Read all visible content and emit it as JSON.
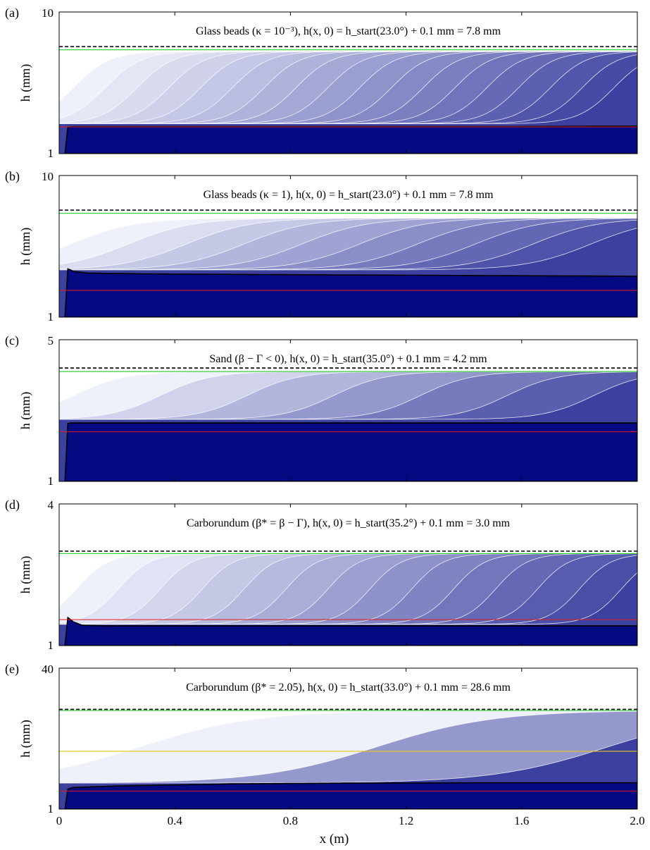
{
  "chart_data": {
    "type": "area",
    "xlabel": "x (m)",
    "xlim": [
      0,
      2.0
    ],
    "xticks": [
      "0",
      "0.4",
      "0.8",
      "1.2",
      "1.6",
      "2.0"
    ],
    "xtick_values": [
      0,
      0.4,
      0.8,
      1.2,
      1.6,
      2.0
    ],
    "panels": [
      {
        "label": "(a)",
        "title": "Glass beads (κ = 10⁻³), h(x, 0) = h_start(23.0°) + 0.1 mm = 7.8 mm",
        "ylabel": "h (mm)",
        "ylim": [
          1,
          10
        ],
        "ytick_labels": [
          "1",
          "10"
        ],
        "initial_h": 7.8,
        "green_line": 7.6,
        "red_line": 2.7,
        "deposit": {
          "x": [
            0.02,
            0.03,
            0.06,
            0.2,
            0.6,
            1.0,
            1.5,
            2.0
          ],
          "h": [
            1.0,
            2.7,
            2.72,
            2.72,
            2.72,
            2.72,
            2.72,
            2.75
          ]
        },
        "profiles": {
          "count": 18,
          "front_start": 0.05,
          "front_step": 0.11,
          "left_h": 2.9,
          "right_h": 7.5,
          "blend_width": 0.25
        }
      },
      {
        "label": "(b)",
        "title": "Glass beads (κ = 1), h(x, 0) = h_start(23.0°) + 0.1 mm = 7.8 mm",
        "ylabel": "h (mm)",
        "ylim": [
          1,
          10
        ],
        "ytick_labels": [
          "1",
          "10"
        ],
        "initial_h": 7.8,
        "green_line": 7.6,
        "red_line": 2.7,
        "deposit": {
          "x": [
            0.02,
            0.03,
            0.05,
            0.1,
            0.3,
            0.8,
            1.4,
            2.0
          ],
          "h": [
            1.0,
            4.1,
            3.9,
            3.8,
            3.75,
            3.7,
            3.65,
            3.6
          ]
        },
        "profiles": {
          "count": 10,
          "front_start": 0.04,
          "front_step": 0.2,
          "left_h": 4.0,
          "right_h": 7.3,
          "blend_width": 0.45
        }
      },
      {
        "label": "(c)",
        "title": "Sand (β − Γ < 0), h(x, 0) = h_start(35.0°) + 0.1 mm = 4.2 mm",
        "ylabel": "h (mm)",
        "ylim": [
          1,
          5
        ],
        "ytick_labels": [
          "1",
          "5"
        ],
        "initial_h": 4.2,
        "green_line": 4.1,
        "red_line": 2.4,
        "deposit": {
          "x": [
            0.02,
            0.03,
            0.1,
            0.6,
            1.2,
            2.0
          ],
          "h": [
            1.0,
            2.65,
            2.65,
            2.65,
            2.65,
            2.65
          ]
        },
        "profiles": {
          "count": 7,
          "front_start": 0.05,
          "front_step": 0.3,
          "left_h": 2.75,
          "right_h": 4.1,
          "blend_width": 0.35
        }
      },
      {
        "label": "(d)",
        "title": "Carborundum (β* = β − Γ), h(x, 0) = h_start(35.2°) + 0.1 mm = 3.0 mm",
        "ylabel": "h (mm)",
        "ylim": [
          1,
          4
        ],
        "ytick_labels": [
          "1",
          "4"
        ],
        "initial_h": 3.0,
        "green_line": 2.95,
        "red_line": 1.55,
        "deposit": {
          "x": [
            0.02,
            0.03,
            0.05,
            0.08,
            0.15,
            0.5,
            1.2,
            2.0
          ],
          "h": [
            1.0,
            1.6,
            1.5,
            1.43,
            1.42,
            1.42,
            1.42,
            1.42
          ]
        },
        "profiles": {
          "count": 14,
          "front_start": 0.06,
          "front_step": 0.145,
          "left_h": 1.45,
          "right_h": 2.95,
          "blend_width": 0.22
        }
      },
      {
        "label": "(e)",
        "title": "Carborundum (β* = 2.05), h(x, 0) = h_start(33.0°) + 0.1 mm = 28.6 mm",
        "ylabel": "h (mm)",
        "ylim": [
          1,
          40
        ],
        "ytick_labels": [
          "1",
          "40"
        ],
        "initial_h": 28.6,
        "green_line": 28.3,
        "yellow_line": 17.0,
        "red_line": 6.0,
        "deposit": {
          "x": [
            0.02,
            0.03,
            0.05,
            0.2,
            0.6,
            1.0,
            1.5,
            2.0
          ],
          "h": [
            1.0,
            6.6,
            7.0,
            7.4,
            8.0,
            8.2,
            8.3,
            8.3
          ]
        },
        "profiles": {
          "count": 3,
          "fronts": [
            0.28,
            1.1,
            1.9
          ],
          "left_h": 8.2,
          "right_h": 28.3,
          "blend_width": 0.8
        }
      }
    ]
  }
}
